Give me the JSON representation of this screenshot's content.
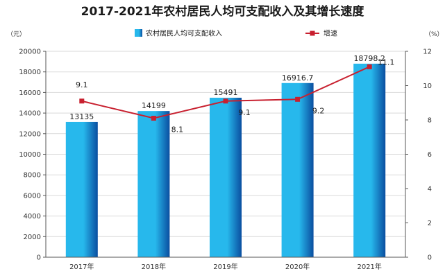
{
  "chart_data": {
    "type": "bar",
    "title": "2017-2021年农村居民人均可支配收入及其增长速度",
    "categories": [
      "2017年",
      "2018年",
      "2019年",
      "2020年",
      "2021年"
    ],
    "series": [
      {
        "name": "农村居民人均可支配收入",
        "type": "bar",
        "axis": "left",
        "values": [
          13135,
          14199,
          15491,
          16916.7,
          18798.2
        ],
        "labels": [
          "13135",
          "14199",
          "15491",
          "16916.7",
          "18798.2"
        ]
      },
      {
        "name": "增速",
        "type": "line",
        "axis": "right",
        "values": [
          9.1,
          8.1,
          9.1,
          9.2,
          11.1
        ],
        "labels": [
          "9.1",
          "8.1",
          "9.1",
          "9.2",
          "11.1"
        ]
      }
    ],
    "y_left": {
      "unit": "（元）",
      "range": [
        0,
        20000
      ],
      "ticks": [
        "0",
        "2000",
        "4000",
        "6000",
        "8000",
        "10000",
        "12000",
        "14000",
        "16000",
        "18000",
        "20000"
      ]
    },
    "y_right": {
      "unit": "（%）",
      "range": [
        0,
        12
      ],
      "ticks": [
        "0",
        "2",
        "4",
        "6",
        "8",
        "10",
        "12"
      ]
    },
    "grid": true,
    "legend_position": "top",
    "colors": {
      "bar_light": "#27b8ec",
      "bar_dark": "#0a4ea0",
      "line": "#c8202f",
      "grid": "#d9d9d9",
      "axis": "#555555"
    }
  }
}
